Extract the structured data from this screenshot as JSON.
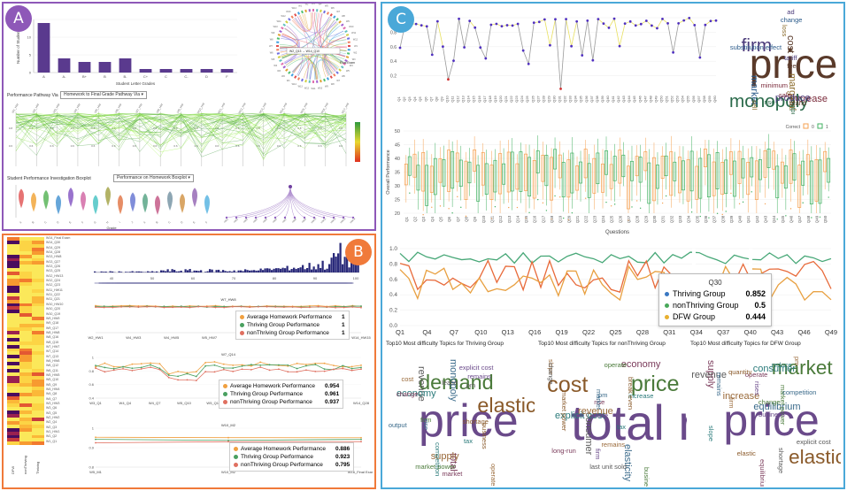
{
  "panelA": {
    "badge": "A",
    "bar_chart": {
      "ylabel": "Number of Students",
      "xlabel": "Student Letter Grades",
      "categories": [
        "A",
        "A-",
        "B+",
        "B",
        "B-",
        "C+",
        "C",
        "C-",
        "D",
        "F"
      ],
      "values": [
        14,
        4,
        3,
        3,
        4,
        1,
        1,
        1,
        1,
        1
      ]
    },
    "chord_labels": [
      "W2_Q13 → W14_Q10",
      "Final Exam"
    ],
    "pathway_select": "Homework to Final Grade Pathway Via",
    "pathway_label": "Performance Pathway Via",
    "boxplot_label": "Student Performance Investigation Boxplot",
    "boxplot_select": "Performance on Homework Boxplot",
    "boxplot_xlabel": "Grade"
  },
  "panelB": {
    "badge": "B",
    "heatmap_col_labels": [
      "DFW",
      "nonThriving",
      "Thriving"
    ],
    "heatmap_row_labels": [
      "W14_Final Exam",
      "W14_Q30",
      "W14_Q29",
      "W14_Q28",
      "W13_HW8",
      "W13_Q27",
      "W13_Q26",
      "W13_Q25",
      "W12_HW13",
      "W12_Q24",
      "W12_Q23",
      "W11_HW11",
      "W11_Q22",
      "W11_Q21",
      "W10_HW10",
      "W10_Q20",
      "W10_Q19",
      "W9_HW9",
      "W9_Q18",
      "W9_Q17",
      "W8_HW8",
      "W8_Q16",
      "W8_Q15",
      "W7_HW7",
      "W7_Q14",
      "W7_Q13",
      "W6_HW6",
      "W6_Q12",
      "W6_Q11",
      "W5_HW5",
      "W5_Q10",
      "W5_Q9",
      "W4_HW4",
      "W4_Q8",
      "W4_Q7",
      "W3_HW3",
      "W3_Q6",
      "W3_Q5",
      "W2_HW2",
      "W2_Q4",
      "W2_Q3",
      "W1_HW1",
      "W1_Q2",
      "W1_Q1"
    ],
    "hist_ticks": [
      "40",
      "50",
      "60",
      "70",
      "80",
      "90",
      "100"
    ],
    "chart1": {
      "title": "W7_HW8",
      "xticks": [
        "W2_HW1",
        "W4_HW3",
        "W4_HW5",
        "W5_HW7",
        "W8_HW9",
        "W9_HW11",
        "W12_HW13",
        "W14_HW15"
      ],
      "legend": [
        {
          "label": "Average Homework Performance",
          "value": "1",
          "color": "#f0a040"
        },
        {
          "label": "Thriving Group Performance",
          "value": "1",
          "color": "#4aa060"
        },
        {
          "label": "nonThriving Group Performance",
          "value": "1",
          "color": "#e07060"
        }
      ]
    },
    "chart2": {
      "title": "W7_Q14",
      "xticks": [
        "W3_Q1",
        "W4_Q4",
        "W4_Q7",
        "W5_Q10",
        "W5_Q13",
        "W8_Q16",
        "W10_Q19",
        "W11_Q22",
        "W12_Q25",
        "W14_Q28"
      ],
      "yticks": [
        "1",
        "0.8",
        "0.6",
        "0.4"
      ],
      "legend": [
        {
          "label": "Average Homework Performance",
          "value": "0.954",
          "color": "#f0a040"
        },
        {
          "label": "Thriving Group Performance",
          "value": "0.961",
          "color": "#4aa060"
        },
        {
          "label": "nonThriving Group Performance",
          "value": "0.937",
          "color": "#e07060"
        }
      ]
    },
    "chart3": {
      "title": "W10_M2",
      "xticks": [
        "W5_M1",
        "W10_M2",
        "W16_Final Exam"
      ],
      "yticks": [
        "1",
        "0.9",
        "0.8"
      ],
      "legend": [
        {
          "label": "Average Homework Performance",
          "value": "0.886",
          "color": "#f0a040"
        },
        {
          "label": "Thriving Group Performance",
          "value": "0.923",
          "color": "#4aa060"
        },
        {
          "label": "nonThriving Group Performance",
          "value": "0.795",
          "color": "#e07060"
        }
      ]
    }
  },
  "panelC": {
    "badge": "C",
    "top_yticks": [
      "1",
      "0.8",
      "0.6",
      "0.4",
      "0.2"
    ],
    "box_ylabel": "Overall Performance",
    "box_xlabel": "Questions",
    "box_yticks": [
      "50",
      "45",
      "40",
      "35",
      "30",
      "25",
      "20"
    ],
    "box_legend": {
      "title": "Correct",
      "items": [
        "0",
        "1"
      ]
    },
    "line_yticks": [
      "1.0",
      "0.8",
      "0.6",
      "0.4",
      "0.2",
      "0.0"
    ],
    "line_xticks": [
      "Q1",
      "Q4",
      "Q7",
      "Q10",
      "Q13",
      "Q16",
      "Q19",
      "Q22",
      "Q25",
      "Q28",
      "Q31",
      "Q34",
      "Q37",
      "Q40",
      "Q43",
      "Q46",
      "Q49"
    ],
    "q30": {
      "title": "Q30",
      "rows": [
        {
          "label": "Thriving Group",
          "value": "0.852",
          "color": "#3a78c2"
        },
        {
          "label": "nonThriving Group",
          "value": "0.5",
          "color": "#48a85a"
        },
        {
          "label": "DFW Group",
          "value": "0.444",
          "color": "#e8b030"
        }
      ]
    },
    "wc_titles": [
      "Top10 Most difficulty Topics for Thriving Group",
      "Top10 Most difficulty Topics for nonThriving Group",
      "Top10 Most difficulty Topics for DFW Group"
    ],
    "wordcloud_top": [
      "price",
      "firm",
      "monopoly",
      "increase",
      "market",
      "marginal cost",
      "cost",
      "produce",
      "output",
      "sale",
      "change",
      "sell",
      "brand",
      "tariff",
      "rise",
      "minimum",
      "substitution effect",
      "loss",
      "fee",
      "ad"
    ],
    "wordcloud1": [
      "price",
      "demand",
      "elasticity",
      "monopoly",
      "total",
      "revenue",
      "economy",
      "supply",
      "explicit cost",
      "firm",
      "shortage",
      "rise",
      "market",
      "pm",
      "competition",
      "operate",
      "remains",
      "market power",
      "business",
      "output",
      "change",
      "lease",
      "tax",
      "cost"
    ],
    "wordcloud2": [
      "total revenue",
      "price",
      "cost",
      "elasticity",
      "economy",
      "consumer",
      "explicit cost",
      "revenue",
      "firm",
      "business",
      "market power",
      "pm",
      "rise",
      "last unit sold",
      "increase",
      "slope",
      "lease",
      "operate",
      "break even",
      "market",
      "long-run",
      "change",
      "tax",
      "remains"
    ],
    "wordcloud3": [
      "price",
      "market",
      "elasticity",
      "equilibrium",
      "supply",
      "revenue",
      "consumer",
      "increase",
      "rises",
      "market power",
      "elastic",
      "competition",
      "operate",
      "shortage",
      "slope",
      "pm",
      "business",
      "change",
      "quantity",
      "remains",
      "equilibrium point",
      "explicit cost",
      "reduce",
      "firm"
    ]
  }
}
